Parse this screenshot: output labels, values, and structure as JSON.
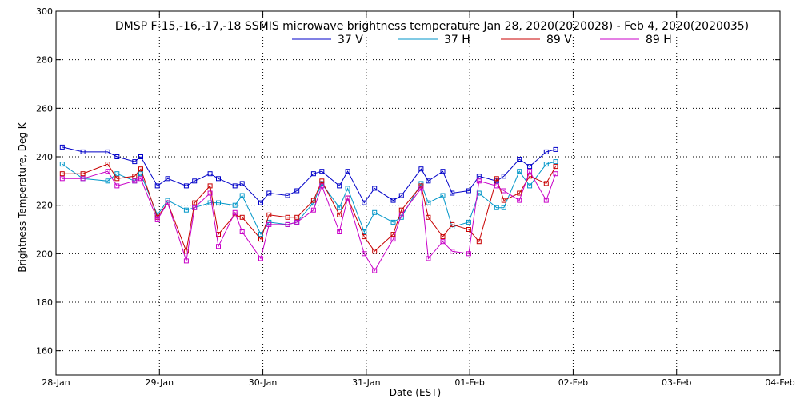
{
  "chart_data": {
    "type": "line",
    "title": "DMSP F-15,-16,-17,-18 SSMIS microwave brightness temperature Jan 28, 2020(2020028) - Feb  4, 2020(2020035)",
    "xlabel": "Date (EST)",
    "ylabel": "Brightness Temperature, Deg K",
    "xlim": [
      0,
      7
    ],
    "ylim": [
      150,
      300
    ],
    "yticks": [
      160,
      180,
      200,
      220,
      240,
      260,
      280,
      300
    ],
    "xtick_labels": [
      "28-Jan",
      "29-Jan",
      "30-Jan",
      "31-Jan",
      "01-Feb",
      "02-Feb",
      "03-Feb",
      "04-Feb"
    ],
    "grid": true,
    "legend_position": "top-center",
    "series": [
      {
        "name": "37 V",
        "color": "#0000c8",
        "x": [
          0.06,
          0.26,
          0.5,
          0.59,
          0.76,
          0.82,
          0.98,
          1.08,
          1.26,
          1.34,
          1.49,
          1.57,
          1.73,
          1.8,
          1.98,
          2.06,
          2.24,
          2.33,
          2.49,
          2.57,
          2.74,
          2.82,
          2.98,
          3.08,
          3.26,
          3.34,
          3.53,
          3.6,
          3.74,
          3.83,
          3.99,
          4.09,
          4.26,
          4.33,
          4.48,
          4.58,
          4.74,
          4.83
        ],
        "y": [
          244,
          242,
          242,
          240,
          238,
          240,
          228,
          231,
          228,
          230,
          233,
          231,
          228,
          229,
          221,
          225,
          224,
          226,
          233,
          234,
          228,
          234,
          221,
          227,
          222,
          224,
          235,
          230,
          234,
          225,
          226,
          232,
          230,
          232,
          239,
          236,
          242,
          243
        ]
      },
      {
        "name": "37 H",
        "color": "#0096c8",
        "x": [
          0.06,
          0.26,
          0.5,
          0.59,
          0.76,
          0.82,
          0.98,
          1.08,
          1.26,
          1.34,
          1.49,
          1.57,
          1.73,
          1.8,
          1.98,
          2.06,
          2.24,
          2.33,
          2.49,
          2.57,
          2.74,
          2.82,
          2.98,
          3.08,
          3.26,
          3.34,
          3.53,
          3.6,
          3.74,
          3.83,
          3.99,
          4.09,
          4.26,
          4.33,
          4.48,
          4.58,
          4.74,
          4.83
        ],
        "y": [
          237,
          231,
          230,
          233,
          230,
          233,
          216,
          222,
          218,
          219,
          221,
          221,
          220,
          224,
          208,
          213,
          212,
          213,
          221,
          229,
          219,
          227,
          209,
          217,
          213,
          215,
          229,
          221,
          224,
          211,
          213,
          225,
          219,
          219,
          234,
          228,
          237,
          238
        ]
      },
      {
        "name": "89 V",
        "color": "#c80000",
        "x": [
          0.06,
          0.26,
          0.5,
          0.59,
          0.76,
          0.82,
          0.98,
          1.08,
          1.26,
          1.34,
          1.49,
          1.57,
          1.73,
          1.8,
          1.98,
          2.06,
          2.24,
          2.33,
          2.49,
          2.57,
          2.74,
          2.82,
          2.98,
          3.08,
          3.26,
          3.34,
          3.53,
          3.6,
          3.74,
          3.83,
          3.99,
          4.09,
          4.26,
          4.33,
          4.48,
          4.58,
          4.74,
          4.83
        ],
        "y": [
          233,
          233,
          237,
          231,
          232,
          235,
          215,
          221,
          201,
          221,
          228,
          208,
          216,
          215,
          206,
          216,
          215,
          215,
          222,
          230,
          216,
          223,
          207,
          201,
          208,
          218,
          228,
          215,
          207,
          212,
          210,
          205,
          231,
          222,
          225,
          232,
          229,
          236
        ]
      },
      {
        "name": "89 H",
        "color": "#c800c8",
        "x": [
          0.06,
          0.26,
          0.5,
          0.59,
          0.76,
          0.82,
          0.98,
          1.08,
          1.26,
          1.34,
          1.49,
          1.57,
          1.73,
          1.8,
          1.98,
          2.06,
          2.24,
          2.33,
          2.49,
          2.57,
          2.74,
          2.82,
          2.98,
          3.08,
          3.26,
          3.34,
          3.53,
          3.6,
          3.74,
          3.83,
          3.99,
          4.09,
          4.26,
          4.33,
          4.48,
          4.58,
          4.74,
          4.83
        ],
        "y": [
          231,
          231,
          234,
          228,
          230,
          231,
          214,
          221,
          197,
          219,
          225,
          203,
          217,
          209,
          198,
          212,
          212,
          213,
          218,
          228,
          209,
          223,
          200,
          193,
          206,
          216,
          227,
          198,
          205,
          201,
          200,
          230,
          228,
          226,
          222,
          234,
          222,
          233
        ]
      }
    ]
  }
}
